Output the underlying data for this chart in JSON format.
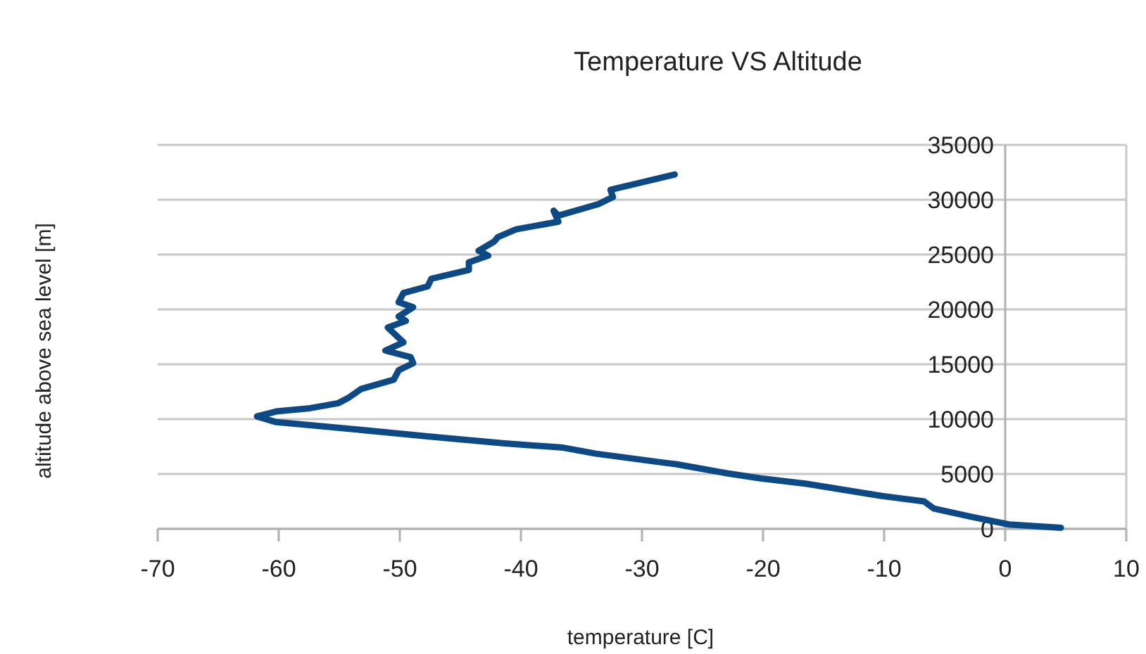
{
  "chart_data": {
    "type": "line",
    "title": "Temperature VS Altitude",
    "xlabel": "temperature [C]",
    "ylabel": "altitude above sea level [m]",
    "xlim": [
      -70,
      10
    ],
    "xticks": [
      -70,
      -60,
      -50,
      -40,
      -30,
      -20,
      -10,
      0,
      10
    ],
    "ylim": [
      0,
      35000
    ],
    "yticks": [
      0,
      5000,
      10000,
      15000,
      20000,
      25000,
      30000,
      35000
    ],
    "grid": "y",
    "marker": "none",
    "line_style": "solid",
    "series": [
      {
        "color": "#0d4a85",
        "x": [
          4.6,
          0.3,
          -2.8,
          -5.9,
          -6.7,
          -10.2,
          -16.4,
          -20.2,
          -22.9,
          -27.2,
          -28.0,
          -33.8,
          -36.5,
          -41.5,
          -47.4,
          -54.0,
          -60.3,
          -61.8,
          -60.2,
          -57.4,
          -55.1,
          -54.3,
          -53.2,
          -50.5,
          -50.1,
          -48.9,
          -49.1,
          -51.2,
          -49.7,
          -51.0,
          -49.5,
          -50.1,
          -48.9,
          -50.1,
          -49.7,
          -47.7,
          -47.4,
          -44.3,
          -44.3,
          -42.7,
          -43.5,
          -42.2,
          -41.9,
          -40.4,
          -36.9,
          -37.3,
          -36.9,
          -33.6,
          -32.4,
          -32.6,
          -27.3
        ],
        "values": [
          100,
          400,
          1100,
          1850,
          2500,
          3000,
          4100,
          4600,
          5050,
          5900,
          6000,
          6850,
          7400,
          7800,
          8400,
          9100,
          9750,
          10250,
          10700,
          11000,
          11450,
          11900,
          12750,
          13600,
          14450,
          15100,
          15650,
          16250,
          17000,
          18350,
          18950,
          19350,
          20200,
          20650,
          21500,
          22100,
          22800,
          23600,
          24300,
          24900,
          25350,
          26200,
          26600,
          27300,
          28000,
          29000,
          28550,
          29600,
          30250,
          30900,
          32300
        ]
      }
    ]
  }
}
